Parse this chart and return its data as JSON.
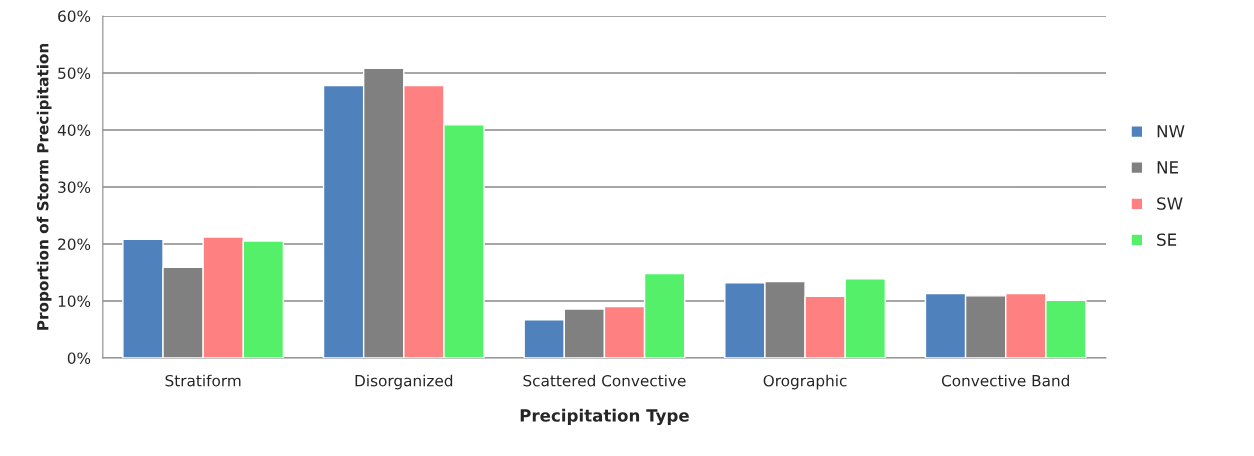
{
  "chart_data": {
    "type": "bar",
    "xlabel": "Precipitation Type",
    "ylabel": "Proportion of Storm Precipitation",
    "categories": [
      "Stratiform",
      "Disorganized",
      "Scattered Convective",
      "Orographic",
      "Convective Band"
    ],
    "series": [
      {
        "name": "NW",
        "color": "#4f81bd",
        "values": [
          0.208,
          0.478,
          0.067,
          0.132,
          0.113
        ]
      },
      {
        "name": "NE",
        "color": "#808080",
        "values": [
          0.159,
          0.508,
          0.086,
          0.134,
          0.109
        ]
      },
      {
        "name": "SW",
        "color": "#ff8080",
        "values": [
          0.212,
          0.478,
          0.09,
          0.108,
          0.113
        ]
      },
      {
        "name": "SE",
        "color": "#55f06a",
        "values": [
          0.205,
          0.409,
          0.148,
          0.139,
          0.101
        ]
      }
    ],
    "ylim": [
      0,
      0.6
    ],
    "yticks": [
      {
        "value": 0,
        "label": "0%"
      },
      {
        "value": 0.1,
        "label": "10%"
      },
      {
        "value": 0.2,
        "label": "20%"
      },
      {
        "value": 0.3,
        "label": "30%"
      },
      {
        "value": 0.4,
        "label": "40%"
      },
      {
        "value": 0.5,
        "label": "50%"
      },
      {
        "value": 0.6,
        "label": "60%"
      }
    ],
    "grid": "y",
    "legend": "right"
  }
}
